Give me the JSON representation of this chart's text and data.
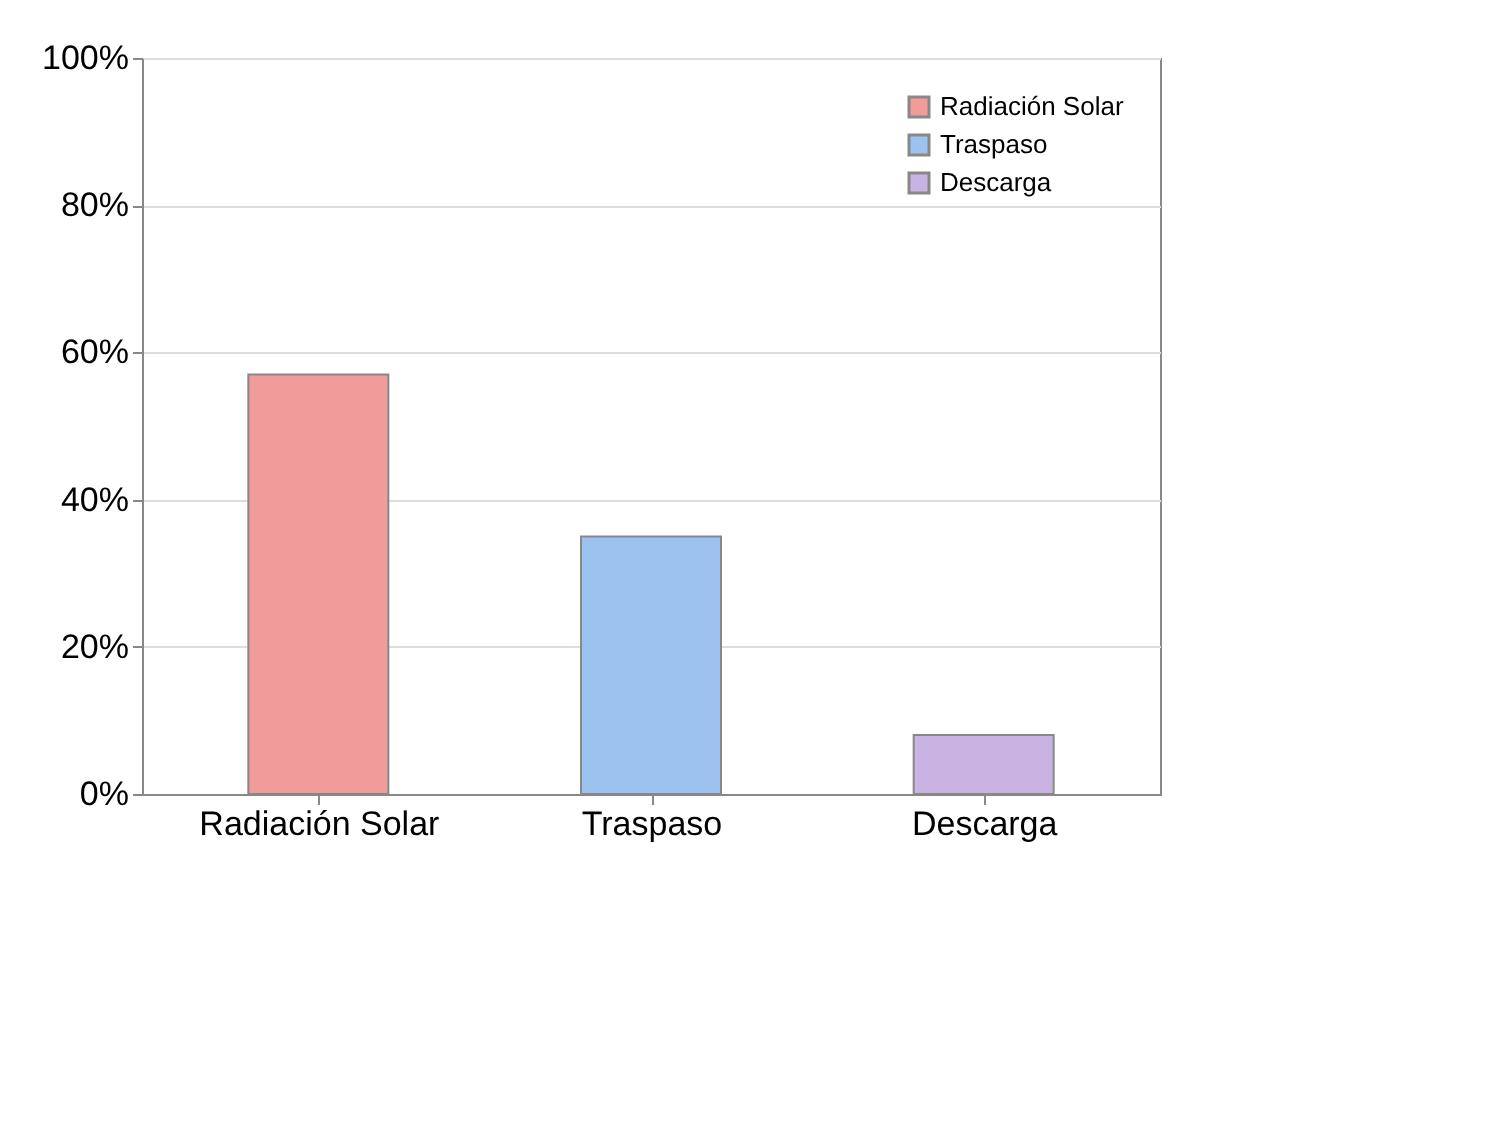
{
  "chart_data": {
    "type": "bar",
    "categories": [
      "Radiación Solar",
      "Traspaso",
      "Descarga"
    ],
    "series": [
      {
        "name": "Radiación Solar",
        "color": "#f29b9b",
        "values": [
          57,
          null,
          null
        ]
      },
      {
        "name": "Traspaso",
        "color": "#9cc3f0",
        "values": [
          null,
          35,
          null
        ]
      },
      {
        "name": "Descarga",
        "color": "#c9b3e3",
        "values": [
          null,
          null,
          8
        ]
      }
    ],
    "ylim": [
      0,
      100
    ],
    "yticks": [
      {
        "value": 0,
        "label": "0%"
      },
      {
        "value": 20,
        "label": "20%"
      },
      {
        "value": 40,
        "label": "40%"
      },
      {
        "value": 60,
        "label": "60%"
      },
      {
        "value": 80,
        "label": "80%"
      },
      {
        "value": 100,
        "label": "100%"
      }
    ],
    "grid": "y",
    "legend": "top right"
  }
}
